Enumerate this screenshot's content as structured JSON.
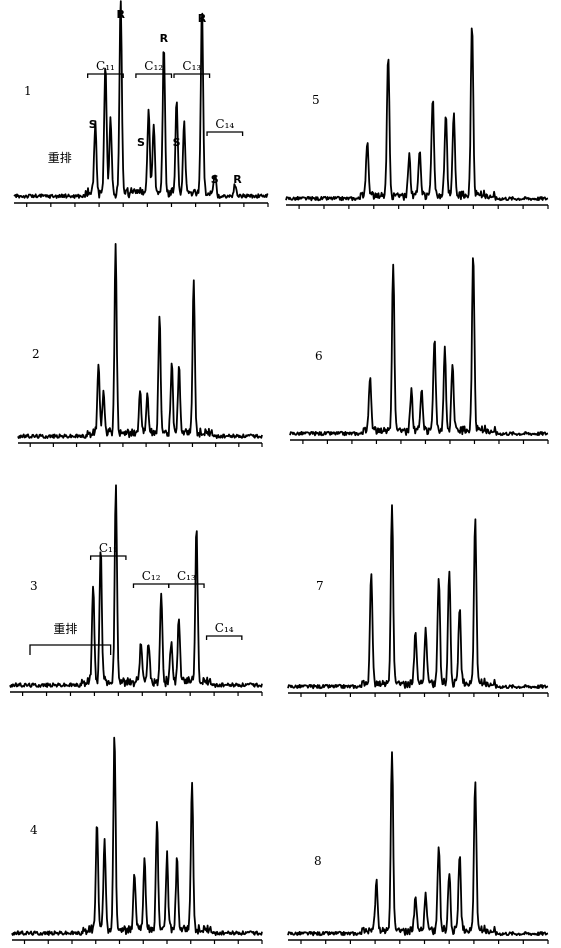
{
  "chart_data": [
    {
      "type": "line",
      "panel_label": "1",
      "peaks": [
        [
          0.32,
          0.35
        ],
        [
          0.36,
          0.68
        ],
        [
          0.38,
          0.38
        ],
        [
          0.42,
          1.0
        ],
        [
          0.53,
          0.42
        ],
        [
          0.55,
          0.35
        ],
        [
          0.59,
          0.76
        ],
        [
          0.64,
          0.46
        ],
        [
          0.67,
          0.36
        ],
        [
          0.74,
          0.95
        ],
        [
          0.79,
          0.1
        ],
        [
          0.87,
          0.06
        ]
      ],
      "annotations": [
        {
          "text": "R",
          "at": 0.42
        },
        {
          "text": "R",
          "at": 0.59
        },
        {
          "text": "R",
          "at": 0.74
        },
        {
          "text": "S",
          "at": 0.31
        },
        {
          "text": "S",
          "at": 0.5
        },
        {
          "text": "S",
          "at": 0.64
        },
        {
          "text": "S",
          "at": 0.79
        },
        {
          "text": "R",
          "at": 0.88
        },
        {
          "text": "C₁₁",
          "at": 0.36
        },
        {
          "text": "C₁₂",
          "at": 0.55
        },
        {
          "text": "C₁₃",
          "at": 0.7
        },
        {
          "text": "C₁₄",
          "at": 0.83
        },
        {
          "text": "重排",
          "at": 0.18
        }
      ]
    },
    {
      "type": "line",
      "panel_label": "2",
      "peaks": [
        [
          0.33,
          0.35
        ],
        [
          0.35,
          0.22
        ],
        [
          0.4,
          1.0
        ],
        [
          0.5,
          0.22
        ],
        [
          0.53,
          0.2
        ],
        [
          0.58,
          0.62
        ],
        [
          0.63,
          0.36
        ],
        [
          0.66,
          0.35
        ],
        [
          0.72,
          0.8
        ]
      ]
    },
    {
      "type": "line",
      "panel_label": "3",
      "peaks": [
        [
          0.33,
          0.48
        ],
        [
          0.36,
          0.68
        ],
        [
          0.42,
          1.0
        ],
        [
          0.52,
          0.2
        ],
        [
          0.55,
          0.2
        ],
        [
          0.6,
          0.45
        ],
        [
          0.64,
          0.2
        ],
        [
          0.67,
          0.33
        ],
        [
          0.74,
          0.8
        ]
      ],
      "annotations": [
        {
          "text": "C₁₁",
          "at": 0.39
        },
        {
          "text": "C₁₂",
          "at": 0.56
        },
        {
          "text": "C₁₃",
          "at": 0.7
        },
        {
          "text": "C₁₄",
          "at": 0.85
        },
        {
          "text": "重排",
          "at": 0.22
        }
      ]
    },
    {
      "type": "line",
      "panel_label": "4",
      "peaks": [
        [
          0.34,
          0.55
        ],
        [
          0.37,
          0.45
        ],
        [
          0.41,
          1.0
        ],
        [
          0.49,
          0.3
        ],
        [
          0.53,
          0.36
        ],
        [
          0.58,
          0.56
        ],
        [
          0.62,
          0.38
        ],
        [
          0.66,
          0.37
        ],
        [
          0.72,
          0.75
        ]
      ]
    },
    {
      "type": "line",
      "panel_label": "5",
      "peaks": [
        [
          0.31,
          0.3
        ],
        [
          0.39,
          0.8
        ],
        [
          0.47,
          0.22
        ],
        [
          0.51,
          0.24
        ],
        [
          0.56,
          0.55
        ],
        [
          0.61,
          0.46
        ],
        [
          0.64,
          0.45
        ],
        [
          0.71,
          0.95
        ]
      ]
    },
    {
      "type": "line",
      "panel_label": "6",
      "peaks": [
        [
          0.31,
          0.3
        ],
        [
          0.4,
          0.93
        ],
        [
          0.47,
          0.22
        ],
        [
          0.51,
          0.22
        ],
        [
          0.56,
          0.52
        ],
        [
          0.6,
          0.44
        ],
        [
          0.63,
          0.38
        ],
        [
          0.71,
          0.98
        ]
      ]
    },
    {
      "type": "line",
      "panel_label": "7",
      "peaks": [
        [
          0.32,
          0.62
        ],
        [
          0.4,
          1.0
        ],
        [
          0.49,
          0.28
        ],
        [
          0.53,
          0.3
        ],
        [
          0.58,
          0.6
        ],
        [
          0.62,
          0.64
        ],
        [
          0.66,
          0.42
        ],
        [
          0.72,
          0.93
        ]
      ]
    },
    {
      "type": "line",
      "panel_label": "8",
      "peaks": [
        [
          0.34,
          0.28
        ],
        [
          0.4,
          1.0
        ],
        [
          0.49,
          0.18
        ],
        [
          0.53,
          0.2
        ],
        [
          0.58,
          0.48
        ],
        [
          0.62,
          0.33
        ],
        [
          0.66,
          0.42
        ],
        [
          0.72,
          0.84
        ]
      ]
    }
  ]
}
